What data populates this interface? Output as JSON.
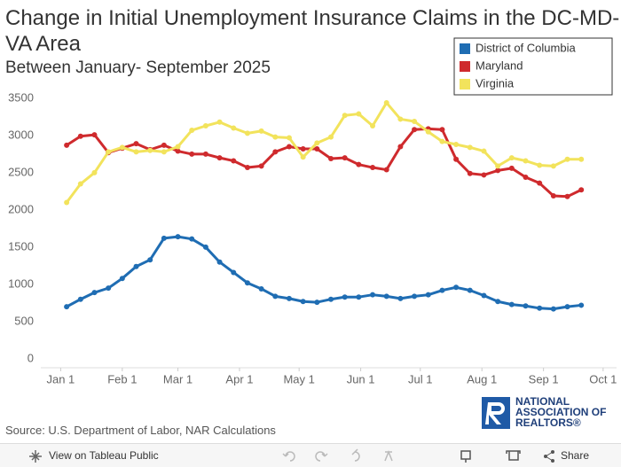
{
  "chart_data": {
    "type": "line",
    "title": "Change in Initial Unemployment Insurance Claims in the DC-MD-VA Area",
    "subtitle": "Between January- September 2025",
    "source": "Source: U.S. Department of Labor, NAR Calculations",
    "x": [
      3,
      10,
      17,
      24,
      31,
      38,
      45,
      52,
      59,
      66,
      73,
      80,
      87,
      94,
      101,
      108,
      115,
      122,
      129,
      136,
      143,
      150,
      157,
      164,
      171,
      178,
      185,
      192,
      199,
      206,
      213,
      220,
      227,
      234,
      241,
      248,
      255,
      262
    ],
    "xlim": [
      -10,
      282
    ],
    "xticks": [
      {
        "value": 0,
        "label": "Jan 1"
      },
      {
        "value": 31,
        "label": "Feb 1"
      },
      {
        "value": 59,
        "label": "Mar 1"
      },
      {
        "value": 90,
        "label": "Apr 1"
      },
      {
        "value": 120,
        "label": "May 1"
      },
      {
        "value": 151,
        "label": "Jun 1"
      },
      {
        "value": 181,
        "label": "Jul 1"
      },
      {
        "value": 212,
        "label": "Aug 1"
      },
      {
        "value": 243,
        "label": "Sep 1"
      },
      {
        "value": 273,
        "label": "Oct 1"
      }
    ],
    "ylim": [
      -120,
      3630
    ],
    "yticks": [
      0,
      500,
      1000,
      1500,
      2000,
      2500,
      3000,
      3500
    ],
    "grid": false,
    "legend": "top-right",
    "series": [
      {
        "name": "District of Columbia",
        "color": "#1f6db3",
        "values": [
          700,
          800,
          890,
          950,
          1080,
          1240,
          1330,
          1620,
          1640,
          1610,
          1500,
          1300,
          1160,
          1020,
          940,
          840,
          810,
          770,
          760,
          800,
          830,
          830,
          860,
          840,
          810,
          840,
          860,
          920,
          960,
          920,
          850,
          770,
          730,
          710,
          680,
          670,
          700,
          720
        ]
      },
      {
        "name": "Maryland",
        "color": "#cf2a2d",
        "values": [
          2870,
          2990,
          3010,
          2770,
          2830,
          2890,
          2810,
          2870,
          2790,
          2750,
          2750,
          2700,
          2660,
          2570,
          2590,
          2780,
          2850,
          2820,
          2820,
          2690,
          2700,
          2610,
          2570,
          2540,
          2850,
          3080,
          3090,
          3080,
          2680,
          2490,
          2470,
          2530,
          2560,
          2440,
          2360,
          2190,
          2180,
          2270
        ]
      },
      {
        "name": "Virginia",
        "color": "#f2e35c",
        "values": [
          2100,
          2350,
          2500,
          2780,
          2840,
          2780,
          2800,
          2780,
          2850,
          3070,
          3130,
          3180,
          3100,
          3030,
          3060,
          2980,
          2970,
          2710,
          2900,
          2980,
          3270,
          3290,
          3130,
          3440,
          3220,
          3190,
          3050,
          2920,
          2880,
          2840,
          2790,
          2590,
          2700,
          2660,
          2600,
          2590,
          2680,
          2680
        ]
      }
    ]
  },
  "logo": {
    "line1": "NATIONAL",
    "line2": "ASSOCIATION OF",
    "line3": "REALTORS®"
  },
  "toolbar": {
    "view": "View on Tableau Public",
    "share": "Share"
  }
}
